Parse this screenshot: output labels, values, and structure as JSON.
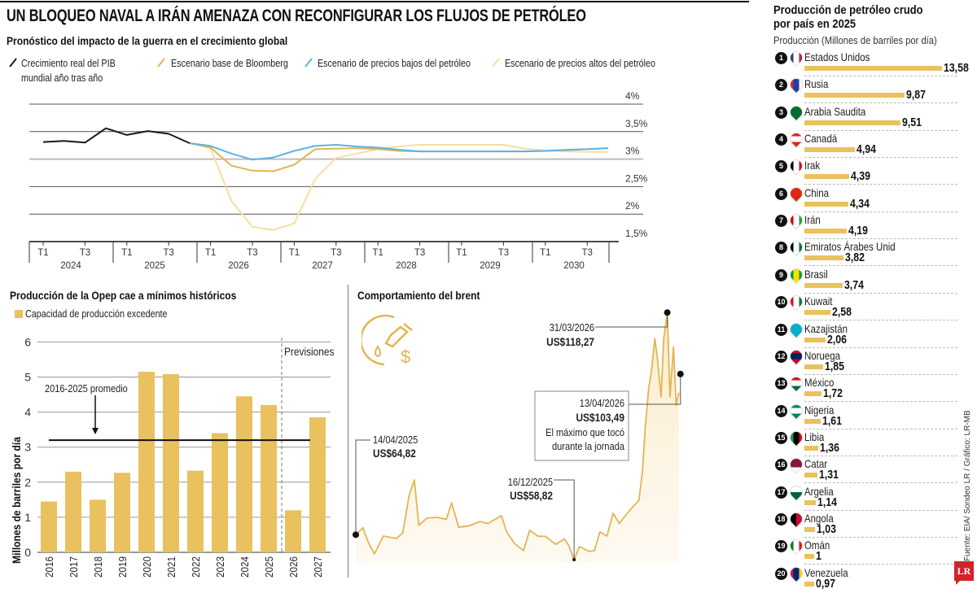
{
  "title": "UN BLOQUEO NAVAL A IRÁN AMENAZA CON RECONFIGURAR LOS FLUJOS DE PETRÓLEO",
  "source": "Fuente: EIA/ Sondeo LR / Gráfico: LR-MB",
  "logo": "LR",
  "chart_data": [
    {
      "type": "line",
      "title": "Pronóstico del impacto de la guerra en el crecimiento global",
      "x": [
        "T1 2024",
        "T2 2024",
        "T3 2024",
        "T4 2024",
        "T1 2025",
        "T2 2025",
        "T3 2025",
        "T4 2025",
        "T1 2026",
        "T2 2026",
        "T3 2026",
        "T4 2026",
        "T1 2027",
        "T2 2027",
        "T3 2027",
        "T4 2027",
        "T1 2028",
        "T2 2028",
        "T3 2028",
        "T4 2028",
        "T1 2029",
        "T2 2029",
        "T3 2029",
        "T4 2029",
        "T1 2030",
        "T2 2030",
        "T3 2030",
        "T4 2030"
      ],
      "x_tick_labels": [
        "T1",
        "T3"
      ],
      "years": [
        "2024",
        "2025",
        "2026",
        "2027",
        "2028",
        "2029",
        "2030"
      ],
      "y_ticks": [
        {
          "v": 4,
          "label": "4%"
        },
        {
          "v": 3.5,
          "label": "3,5%"
        },
        {
          "v": 3,
          "label": "3%"
        },
        {
          "v": 2.5,
          "label": "2,5%"
        },
        {
          "v": 2,
          "label": "2%"
        },
        {
          "v": 1.5,
          "label": "1,5%"
        }
      ],
      "ylim": [
        1.5,
        4
      ],
      "grid": true,
      "legend_position": "top",
      "series": [
        {
          "name": "Crecimiento real del PIB",
          "name2": "mundial año tras año",
          "color": "#1a1a1a",
          "values": [
            3.31,
            3.33,
            3.3,
            3.56,
            3.44,
            3.51,
            3.46,
            3.29,
            null,
            null,
            null,
            null,
            null,
            null,
            null,
            null,
            null,
            null,
            null,
            null,
            null,
            null,
            null,
            null,
            null,
            null,
            null,
            null
          ]
        },
        {
          "name": "Escenario base de Bloomberg",
          "color": "#e3b553",
          "values": [
            null,
            null,
            null,
            null,
            null,
            null,
            null,
            3.29,
            3.21,
            2.88,
            2.79,
            2.78,
            2.9,
            3.18,
            3.19,
            3.2,
            3.18,
            3.15,
            3.14,
            3.14,
            3.14,
            3.14,
            3.14,
            3.14,
            3.15,
            3.16,
            3.18,
            3.2
          ]
        },
        {
          "name": "Escenario de precios bajos del petróleo",
          "color": "#5ab4e5",
          "values": [
            null,
            null,
            null,
            null,
            null,
            null,
            null,
            3.29,
            3.24,
            3.1,
            2.99,
            3.03,
            3.15,
            3.24,
            3.26,
            3.23,
            3.21,
            3.17,
            3.14,
            3.14,
            3.14,
            3.14,
            3.14,
            3.14,
            3.15,
            3.17,
            3.18,
            3.2
          ]
        },
        {
          "name": "Escenario de precios altos del petróleo",
          "color": "#f6dea3",
          "values": [
            null,
            null,
            null,
            null,
            null,
            null,
            null,
            3.29,
            3.2,
            2.24,
            1.77,
            1.71,
            1.83,
            2.64,
            3.02,
            3.1,
            3.18,
            3.23,
            3.26,
            3.26,
            3.26,
            3.26,
            3.26,
            3.19,
            3.16,
            3.14,
            3.13,
            3.13
          ]
        }
      ]
    },
    {
      "type": "bar",
      "title": "Producción de la Opep cae a mínimos históricos",
      "legend": "Capacidad de producción excedente",
      "ylabel": "Millones de barriles por día",
      "categories": [
        "2016",
        "2017",
        "2018",
        "2019",
        "2020",
        "2021",
        "2022",
        "2023",
        "2024",
        "2025",
        "2026",
        "2027"
      ],
      "values": [
        1.45,
        2.3,
        1.5,
        2.27,
        5.15,
        5.08,
        2.33,
        3.4,
        4.45,
        4.2,
        1.2,
        3.85
      ],
      "y_ticks": [
        "0",
        "1",
        "2",
        "3",
        "4",
        "5",
        "6"
      ],
      "ylim": [
        0,
        6
      ],
      "color": "#e9c15e",
      "average": {
        "value": 3.2,
        "label": "2016-2025 promedio"
      },
      "forecast_label": "Previsiones",
      "forecast_from": "2026"
    },
    {
      "type": "area",
      "title": "Comportamiento del brent",
      "icon": "fuel-nozzle-dollar-icon",
      "color": "#e3b553",
      "points": [
        [
          "2025-04-14",
          64.82
        ],
        [
          "2025-04-22",
          66.5
        ],
        [
          "2025-04-28",
          63.0
        ],
        [
          "2025-05-05",
          60.2
        ],
        [
          "2025-05-15",
          64.5
        ],
        [
          "2025-05-30",
          63.9
        ],
        [
          "2025-06-06",
          65.3
        ],
        [
          "2025-06-13",
          74.2
        ],
        [
          "2025-06-19",
          78.0
        ],
        [
          "2025-06-24",
          67.1
        ],
        [
          "2025-07-03",
          68.8
        ],
        [
          "2025-07-15",
          69.0
        ],
        [
          "2025-07-25",
          68.5
        ],
        [
          "2025-07-31",
          72.5
        ],
        [
          "2025-08-08",
          66.6
        ],
        [
          "2025-08-20",
          67.0
        ],
        [
          "2025-09-01",
          68.0
        ],
        [
          "2025-09-10",
          67.5
        ],
        [
          "2025-09-25",
          69.4
        ],
        [
          "2025-10-01",
          65.5
        ],
        [
          "2025-10-10",
          62.7
        ],
        [
          "2025-10-20",
          61.0
        ],
        [
          "2025-10-27",
          65.9
        ],
        [
          "2025-11-05",
          64.5
        ],
        [
          "2025-11-14",
          64.4
        ],
        [
          "2025-11-25",
          62.5
        ],
        [
          "2025-12-05",
          63.8
        ],
        [
          "2025-12-10",
          62.2
        ],
        [
          "2025-12-16",
          58.82
        ],
        [
          "2025-12-22",
          62.0
        ],
        [
          "2026-01-02",
          60.8
        ],
        [
          "2026-01-08",
          61.0
        ],
        [
          "2026-01-14",
          65.5
        ],
        [
          "2026-01-22",
          64.5
        ],
        [
          "2026-01-29",
          70.0
        ],
        [
          "2026-02-05",
          67.5
        ],
        [
          "2026-02-12",
          69.5
        ],
        [
          "2026-02-20",
          71.5
        ],
        [
          "2026-02-27",
          73.0
        ],
        [
          "2026-03-03",
          80.0
        ],
        [
          "2026-03-06",
          90.0
        ],
        [
          "2026-03-10",
          100.0
        ],
        [
          "2026-03-13",
          104.0
        ],
        [
          "2026-03-17",
          112.0
        ],
        [
          "2026-03-20",
          107.0
        ],
        [
          "2026-03-24",
          98.0
        ],
        [
          "2026-03-27",
          112.0
        ],
        [
          "2026-03-31",
          118.27
        ],
        [
          "2026-04-03",
          98.0
        ],
        [
          "2026-04-07",
          110.0
        ],
        [
          "2026-04-10",
          96.0
        ],
        [
          "2026-04-13",
          99.0
        ]
      ],
      "annotations": [
        {
          "date": "14/04/2025",
          "value": "US$64,82",
          "iso": "2025-04-14",
          "price": 64.82
        },
        {
          "date": "16/12/2025",
          "value": "US$58,82",
          "iso": "2025-12-16",
          "price": 58.82
        },
        {
          "date": "31/03/2026",
          "value": "US$118,27",
          "iso": "2026-03-31",
          "price": 118.27
        },
        {
          "date": "13/04/2026",
          "value": "US$103,49",
          "note1": "El máximo que tocó",
          "note2": "durante la jornada",
          "iso": "2026-04-13",
          "price": 103.49
        }
      ]
    }
  ],
  "ranking": {
    "title1": "Producción de petróleo crudo",
    "title2": "por país en 2025",
    "subtitle": "Producción (Millones de barriles por día)",
    "bar_color": "#e9c15e",
    "items": [
      {
        "rank": "1",
        "name": "Estados Unidos",
        "value": 13.58,
        "label": "13,58",
        "flag": "us-flag-icon",
        "colors": [
          "#b22234",
          "#ffffff",
          "#3c3b6e"
        ],
        "dir": "h"
      },
      {
        "rank": "2",
        "name": "Rusia",
        "value": 9.87,
        "label": "9,87",
        "flag": "russia-flag-icon",
        "colors": [
          "#ffffff",
          "#1c3faa",
          "#d52b1e"
        ],
        "dir": "h"
      },
      {
        "rank": "3",
        "name": "Arabia Saudita",
        "value": 9.51,
        "label": "9,51",
        "flag": "saudi-arabia-flag-icon",
        "colors": [
          "#006c35",
          "#006c35"
        ],
        "dir": "h"
      },
      {
        "rank": "4",
        "name": "Canadá",
        "value": 4.94,
        "label": "4,94",
        "flag": "canada-flag-icon",
        "colors": [
          "#d52b1e",
          "#ffffff",
          "#d52b1e"
        ],
        "dir": "v"
      },
      {
        "rank": "5",
        "name": "Irak",
        "value": 4.39,
        "label": "4,39",
        "flag": "iraq-flag-icon",
        "colors": [
          "#ce1126",
          "#ffffff",
          "#000000"
        ],
        "dir": "h"
      },
      {
        "rank": "6",
        "name": "China",
        "value": 4.34,
        "label": "4,34",
        "flag": "china-flag-icon",
        "colors": [
          "#de2910",
          "#de2910"
        ],
        "dir": "h"
      },
      {
        "rank": "7",
        "name": "Irán",
        "value": 4.19,
        "label": "4,19",
        "flag": "iran-flag-icon",
        "colors": [
          "#239f40",
          "#ffffff",
          "#da0000"
        ],
        "dir": "h"
      },
      {
        "rank": "8",
        "name": "Emiratos Árabes Unid",
        "value": 3.82,
        "label": "3,82",
        "flag": "uae-flag-icon",
        "colors": [
          "#00732f",
          "#ffffff",
          "#000000"
        ],
        "dir": "h"
      },
      {
        "rank": "9",
        "name": "Brasil",
        "value": 3.74,
        "label": "3,74",
        "flag": "brazil-flag-icon",
        "colors": [
          "#009c3b",
          "#ffdf00",
          "#009c3b"
        ],
        "dir": "h"
      },
      {
        "rank": "10",
        "name": "Kuwait",
        "value": 2.58,
        "label": "2,58",
        "flag": "kuwait-flag-icon",
        "colors": [
          "#007a3d",
          "#ffffff",
          "#ce1126"
        ],
        "dir": "h"
      },
      {
        "rank": "11",
        "name": "Kazajistán",
        "value": 2.06,
        "label": "2,06",
        "flag": "kazakhstan-flag-icon",
        "colors": [
          "#00afca",
          "#00afca"
        ],
        "dir": "h"
      },
      {
        "rank": "12",
        "name": "Noruega",
        "value": 1.85,
        "label": "1,85",
        "flag": "norway-flag-icon",
        "colors": [
          "#ba0c2f",
          "#00205b",
          "#ba0c2f"
        ],
        "dir": "v"
      },
      {
        "rank": "13",
        "name": "México",
        "value": 1.72,
        "label": "1,72",
        "flag": "mexico-flag-icon",
        "colors": [
          "#006847",
          "#ffffff",
          "#ce1126"
        ],
        "dir": "v"
      },
      {
        "rank": "14",
        "name": "Nigeria",
        "value": 1.61,
        "label": "1,61",
        "flag": "nigeria-flag-icon",
        "colors": [
          "#008751",
          "#ffffff",
          "#008751"
        ],
        "dir": "v"
      },
      {
        "rank": "15",
        "name": "Libia",
        "value": 1.36,
        "label": "1,36",
        "flag": "libya-flag-icon",
        "colors": [
          "#e70013",
          "#000000",
          "#239e46"
        ],
        "dir": "h"
      },
      {
        "rank": "16",
        "name": "Catar",
        "value": 1.31,
        "label": "1,31",
        "flag": "qatar-flag-icon",
        "colors": [
          "#ffffff",
          "#8a1538",
          "#8a1538"
        ],
        "dir": "v"
      },
      {
        "rank": "17",
        "name": "Argelia",
        "value": 1.14,
        "label": "1,14",
        "flag": "algeria-flag-icon",
        "colors": [
          "#006233",
          "#ffffff"
        ],
        "dir": "v"
      },
      {
        "rank": "18",
        "name": "Angola",
        "value": 1.03,
        "label": "1,03",
        "flag": "angola-flag-icon",
        "colors": [
          "#cc092f",
          "#000000"
        ],
        "dir": "h"
      },
      {
        "rank": "19",
        "name": "Omán",
        "value": 1.0,
        "label": "1",
        "flag": "oman-flag-icon",
        "colors": [
          "#db161b",
          "#ffffff",
          "#008000"
        ],
        "dir": "h"
      },
      {
        "rank": "20",
        "name": "Venezuela",
        "value": 0.97,
        "label": "0,97",
        "flag": "venezuela-flag-icon",
        "colors": [
          "#ffcc00",
          "#00247d",
          "#cf142b"
        ],
        "dir": "h"
      }
    ]
  }
}
